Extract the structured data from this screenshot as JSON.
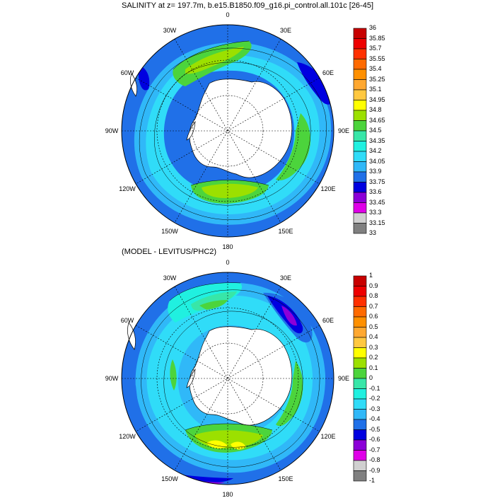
{
  "panels": [
    {
      "title": "SALINITY at z= 197.7m, b.e15.B1850.f09_g16.pi_control.all.101c [26-45]",
      "lon_labels": [
        "0",
        "30E",
        "60E",
        "90E",
        "120E",
        "150E",
        "180",
        "150W",
        "120W",
        "90W",
        "60W",
        "30W"
      ],
      "colorbar": {
        "labels": [
          "36",
          "35.85",
          "35.7",
          "35.55",
          "35.4",
          "35.25",
          "35.1",
          "34.95",
          "34.8",
          "34.65",
          "34.5",
          "34.35",
          "34.2",
          "34.05",
          "33.9",
          "33.75",
          "33.6",
          "33.45",
          "33.3",
          "33.15",
          "33"
        ],
        "colors": [
          "#c80000",
          "#ee0000",
          "#ff3000",
          "#ff6a00",
          "#ff9000",
          "#ffa830",
          "#ffc840",
          "#ffff00",
          "#9ce000",
          "#4cd43c",
          "#38e6a8",
          "#20f0e0",
          "#30dcf8",
          "#30b8f8",
          "#2070e8",
          "#0000e0",
          "#8c00d8",
          "#e000e8",
          "#d0d0d0",
          "#808080"
        ]
      }
    },
    {
      "title": "(MODEL - LEVITUS/PHC2)",
      "lon_labels": [
        "0",
        "30E",
        "60E",
        "90E",
        "120E",
        "150E",
        "180",
        "150W",
        "120W",
        "90W",
        "60W",
        "30W"
      ],
      "colorbar": {
        "labels": [
          "1",
          "0.9",
          "0.8",
          "0.7",
          "0.6",
          "0.5",
          "0.4",
          "0.3",
          "0.2",
          "0.1",
          "0",
          "-0.1",
          "-0.2",
          "-0.3",
          "-0.4",
          "-0.5",
          "-0.6",
          "-0.7",
          "-0.8",
          "-0.9",
          "-1"
        ],
        "colors": [
          "#c80000",
          "#ee0000",
          "#ff3000",
          "#ff6a00",
          "#ff9000",
          "#ffa830",
          "#ffc840",
          "#ffff00",
          "#9ce000",
          "#4cd43c",
          "#38e6a8",
          "#20f0e0",
          "#30dcf8",
          "#30b8f8",
          "#2070e8",
          "#0000e0",
          "#8c00d8",
          "#e000e8",
          "#d0d0d0",
          "#808080"
        ]
      }
    }
  ]
}
